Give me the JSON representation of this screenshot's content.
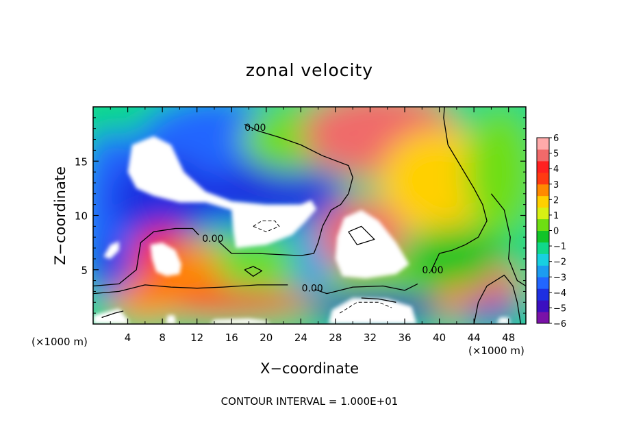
{
  "chart_data": {
    "type": "heatmap",
    "title": "zonal velocity",
    "xlabel": "X−coordinate",
    "ylabel": "Z−coordinate",
    "x_unit": "(×1000 m)",
    "footer": "CONTOUR INTERVAL = 1.000E+01",
    "xlim": [
      0,
      50
    ],
    "ylim": [
      0,
      20
    ],
    "x_ticks": [
      4,
      8,
      12,
      16,
      20,
      24,
      28,
      32,
      36,
      40,
      44,
      48
    ],
    "y_ticks": [
      5,
      10,
      15
    ],
    "colorbar": {
      "min": -6,
      "max": 6,
      "ticks": [
        6,
        5,
        4,
        3,
        2,
        1,
        0,
        -1,
        -2,
        -3,
        -4,
        -5,
        -6
      ],
      "colors": [
        "#7a12a8",
        "#3b0fc0",
        "#1e2fe0",
        "#2266ff",
        "#1c9cf0",
        "#18d0e0",
        "#10d88a",
        "#12c428",
        "#6ede12",
        "#d8f014",
        "#ffd000",
        "#ff8a00",
        "#ff3a12",
        "#ff2020",
        "#f06a6a",
        "#ffaaaa"
      ]
    },
    "contour_labels": [
      {
        "text": "0.00",
        "x": 17.5,
        "y": 18.1
      },
      {
        "text": "0.00",
        "x": 12.6,
        "y": 7.9
      },
      {
        "text": "0.00",
        "x": 24.1,
        "y": 3.3
      },
      {
        "text": "0.00",
        "x": 38.0,
        "y": 5.0
      }
    ],
    "blobs": [
      {
        "x": 2.0,
        "y": 10.0,
        "rx": 4.0,
        "ry": 8.0,
        "v": -3.3
      },
      {
        "x": 14.0,
        "y": 15.0,
        "rx": 10.0,
        "ry": 6.0,
        "v": -3.6
      },
      {
        "x": 8.0,
        "y": 11.5,
        "rx": 6.0,
        "ry": 4.0,
        "v": -4.2
      },
      {
        "x": 21.0,
        "y": 12.0,
        "rx": 8.0,
        "ry": 3.0,
        "v": -4.0
      },
      {
        "x": 25.0,
        "y": 6.0,
        "rx": 3.0,
        "ry": 3.0,
        "v": -3.0
      },
      {
        "x": 23.0,
        "y": 17.0,
        "rx": 6.0,
        "ry": 3.0,
        "v": 0.5
      },
      {
        "x": 33.0,
        "y": 17.5,
        "rx": 9.0,
        "ry": 4.0,
        "v": 5.0
      },
      {
        "x": 40.0,
        "y": 13.0,
        "rx": 7.0,
        "ry": 5.0,
        "v": 1.5
      },
      {
        "x": 47.0,
        "y": 14.0,
        "rx": 4.0,
        "ry": 6.0,
        "v": 0.0
      },
      {
        "x": 31.0,
        "y": 8.0,
        "rx": 5.0,
        "ry": 3.5,
        "v": 4.5
      },
      {
        "x": 8.0,
        "y": 6.0,
        "rx": 3.5,
        "ry": 3.0,
        "v": 4.0
      },
      {
        "x": 12.0,
        "y": 5.0,
        "rx": 4.0,
        "ry": 2.5,
        "v": 2.5
      },
      {
        "x": 19.0,
        "y": 5.5,
        "rx": 5.0,
        "ry": 2.0,
        "v": 0.5
      },
      {
        "x": 16.0,
        "y": 2.0,
        "rx": 10.0,
        "ry": 1.2,
        "v": 3.0
      },
      {
        "x": 6.0,
        "y": 2.2,
        "rx": 4.0,
        "ry": 1.8,
        "v": 2.5
      },
      {
        "x": 35.0,
        "y": 3.5,
        "rx": 8.0,
        "ry": 2.5,
        "v": 0.2
      },
      {
        "x": 33.0,
        "y": 1.5,
        "rx": 8.0,
        "ry": 1.5,
        "v": -4.8
      },
      {
        "x": 42.0,
        "y": 6.0,
        "rx": 6.0,
        "ry": 3.0,
        "v": -0.5
      },
      {
        "x": 42.5,
        "y": 2.2,
        "rx": 3.0,
        "ry": 1.5,
        "v": 2.5
      },
      {
        "x": 47.0,
        "y": 3.5,
        "rx": 2.0,
        "ry": 2.0,
        "v": 5.0
      },
      {
        "x": 46.0,
        "y": 1.0,
        "rx": 4.0,
        "ry": 1.0,
        "v": -4.5
      },
      {
        "x": 2.0,
        "y": 5.5,
        "rx": 2.0,
        "ry": 2.0,
        "v": -4.0
      }
    ],
    "white_regions": [
      [
        [
          4.0,
          14.0
        ],
        [
          4.5,
          16.5
        ],
        [
          7.0,
          17.3
        ],
        [
          9.0,
          16.5
        ],
        [
          10.5,
          14.0
        ],
        [
          13.0,
          12.2
        ],
        [
          16.0,
          11.3
        ],
        [
          20.0,
          11.0
        ],
        [
          24.0,
          11.0
        ],
        [
          25.2,
          11.4
        ],
        [
          25.8,
          10.6
        ],
        [
          24.5,
          9.4
        ],
        [
          23.0,
          8.2
        ],
        [
          20.0,
          7.3
        ],
        [
          16.5,
          7.0
        ],
        [
          16.2,
          8.5
        ],
        [
          16.0,
          10.5
        ],
        [
          13.0,
          11.2
        ],
        [
          10.0,
          11.2
        ],
        [
          7.0,
          11.8
        ],
        [
          5.0,
          12.5
        ]
      ],
      [
        [
          28.2,
          8.0
        ],
        [
          29.0,
          9.8
        ],
        [
          31.0,
          10.5
        ],
        [
          33.0,
          9.5
        ],
        [
          35.0,
          7.5
        ],
        [
          36.5,
          5.5
        ],
        [
          35.0,
          4.6
        ],
        [
          31.5,
          4.2
        ],
        [
          28.8,
          4.4
        ],
        [
          28.0,
          6.0
        ]
      ],
      [
        [
          6.6,
          7.3
        ],
        [
          8.0,
          7.5
        ],
        [
          9.5,
          6.8
        ],
        [
          10.2,
          5.5
        ],
        [
          10.0,
          4.6
        ],
        [
          8.5,
          4.4
        ],
        [
          7.3,
          4.8
        ],
        [
          6.8,
          6.0
        ]
      ],
      [
        [
          1.2,
          6.2
        ],
        [
          2.0,
          7.3
        ],
        [
          3.0,
          7.6
        ],
        [
          3.0,
          6.8
        ],
        [
          2.0,
          6.0
        ]
      ],
      [
        [
          27.2,
          0
        ],
        [
          27.6,
          1.3
        ],
        [
          30.0,
          2.4
        ],
        [
          34.0,
          2.3
        ],
        [
          36.8,
          1.6
        ],
        [
          37.4,
          0
        ]
      ],
      [
        [
          0,
          0
        ],
        [
          0,
          0.8
        ],
        [
          3.0,
          1.4
        ],
        [
          4.0,
          0.4
        ],
        [
          4.2,
          0
        ]
      ],
      [
        [
          8.4,
          0
        ],
        [
          8.6,
          0.8
        ],
        [
          9.4,
          0.8
        ],
        [
          9.6,
          0
        ]
      ],
      [
        [
          13.5,
          0
        ],
        [
          14.0,
          0.4
        ],
        [
          18.0,
          0.5
        ],
        [
          20.0,
          0.3
        ],
        [
          20.5,
          0
        ]
      ],
      [
        [
          46.6,
          0
        ],
        [
          47.0,
          0.6
        ],
        [
          48.0,
          0.6
        ],
        [
          48.2,
          0
        ]
      ]
    ],
    "contour_lines": [
      [
        [
          17.5,
          18.4
        ],
        [
          19.0,
          17.8
        ],
        [
          21.5,
          17.2
        ],
        [
          24.0,
          16.5
        ],
        [
          26.5,
          15.5
        ],
        [
          29.5,
          14.6
        ],
        [
          30.0,
          13.5
        ],
        [
          29.5,
          12.0
        ],
        [
          28.6,
          11.0
        ],
        [
          27.5,
          10.5
        ],
        [
          26.5,
          9.0
        ],
        [
          26.0,
          7.5
        ],
        [
          25.5,
          6.5
        ],
        [
          24.0,
          6.3
        ],
        [
          21.5,
          6.4
        ],
        [
          19.0,
          6.5
        ],
        [
          16.0,
          6.5
        ],
        [
          14.5,
          7.6
        ]
      ],
      [
        [
          0,
          3.5
        ],
        [
          3.0,
          3.7
        ],
        [
          5.0,
          5.0
        ],
        [
          5.5,
          7.5
        ],
        [
          7.0,
          8.5
        ],
        [
          9.5,
          8.8
        ],
        [
          11.5,
          8.8
        ],
        [
          12.2,
          8.2
        ]
      ],
      [
        [
          0,
          2.8
        ],
        [
          3.0,
          3.0
        ],
        [
          6.0,
          3.6
        ],
        [
          9.0,
          3.4
        ],
        [
          12.0,
          3.3
        ],
        [
          15.0,
          3.4
        ],
        [
          19.0,
          3.6
        ],
        [
          22.5,
          3.6
        ]
      ],
      [
        [
          25.6,
          3.2
        ],
        [
          27.0,
          2.8
        ],
        [
          30.0,
          3.4
        ],
        [
          33.5,
          3.5
        ],
        [
          36.0,
          3.1
        ],
        [
          37.5,
          3.7
        ]
      ],
      [
        [
          39.0,
          4.8
        ],
        [
          40.0,
          6.5
        ],
        [
          41.5,
          6.8
        ],
        [
          43.0,
          7.3
        ],
        [
          44.5,
          8.0
        ],
        [
          45.5,
          9.5
        ],
        [
          45.0,
          11.0
        ],
        [
          44.0,
          12.5
        ],
        [
          42.5,
          14.5
        ],
        [
          41.0,
          16.5
        ],
        [
          40.5,
          19.0
        ],
        [
          40.6,
          20.0
        ]
      ],
      [
        [
          17.5,
          5.0
        ],
        [
          18.5,
          5.3
        ],
        [
          19.5,
          4.9
        ],
        [
          18.5,
          4.4
        ],
        [
          17.5,
          5.0
        ]
      ],
      [
        [
          29.5,
          8.5
        ],
        [
          31.0,
          9.0
        ],
        [
          32.5,
          7.8
        ],
        [
          30.5,
          7.3
        ],
        [
          29.5,
          8.5
        ]
      ],
      [
        [
          44.0,
          0
        ],
        [
          44.5,
          2.0
        ],
        [
          45.5,
          3.5
        ],
        [
          47.5,
          4.5
        ],
        [
          48.5,
          3.5
        ],
        [
          49.0,
          2.0
        ],
        [
          49.4,
          0
        ]
      ],
      [
        [
          46.0,
          12.0
        ],
        [
          47.5,
          10.5
        ],
        [
          48.2,
          8.0
        ],
        [
          48.0,
          6.0
        ],
        [
          49.0,
          4.0
        ],
        [
          50.0,
          3.5
        ]
      ],
      [
        [
          31.0,
          2.4
        ],
        [
          33.0,
          2.3
        ],
        [
          35.0,
          2.0
        ]
      ],
      [
        [
          1.0,
          0.6
        ],
        [
          2.5,
          1.0
        ],
        [
          3.5,
          1.2
        ]
      ]
    ],
    "dashed_lines": [
      [
        [
          18.5,
          9.0
        ],
        [
          19.5,
          9.5
        ],
        [
          21.0,
          9.5
        ],
        [
          21.5,
          9.0
        ],
        [
          20.0,
          8.5
        ],
        [
          18.5,
          9.0
        ]
      ],
      [
        [
          28.5,
          1.0
        ],
        [
          30.5,
          2.0
        ],
        [
          33.0,
          2.0
        ],
        [
          34.5,
          1.5
        ]
      ]
    ]
  }
}
